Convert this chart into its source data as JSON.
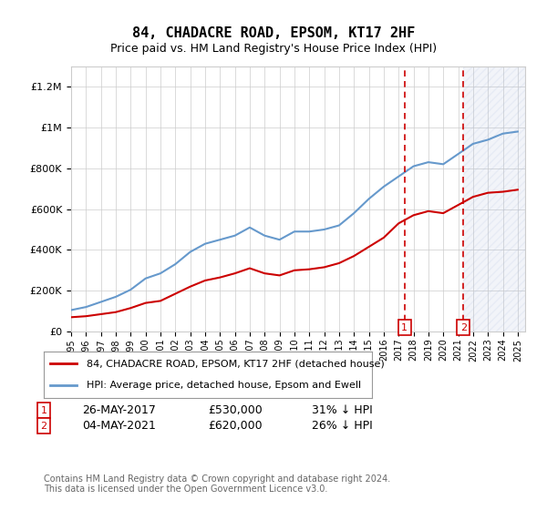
{
  "title": "84, CHADACRE ROAD, EPSOM, KT17 2HF",
  "subtitle": "Price paid vs. HM Land Registry's House Price Index (HPI)",
  "ylabel_ticks": [
    "£0",
    "£200K",
    "£400K",
    "£600K",
    "£800K",
    "£1M",
    "£1.2M"
  ],
  "ytick_values": [
    0,
    200000,
    400000,
    600000,
    800000,
    1000000,
    1200000
  ],
  "ylim": [
    0,
    1300000
  ],
  "xlim_start": 1995.0,
  "xlim_end": 2025.5,
  "sale1_year": 2017.4,
  "sale1_label": "1",
  "sale1_date": "26-MAY-2017",
  "sale1_price": "£530,000",
  "sale1_hpi": "31% ↓ HPI",
  "sale2_year": 2021.35,
  "sale2_label": "2",
  "sale2_date": "04-MAY-2021",
  "sale2_price": "£620,000",
  "sale2_hpi": "26% ↓ HPI",
  "hpi_color": "#6699cc",
  "price_color": "#cc0000",
  "dashed_color": "#cc0000",
  "legend1_label": "84, CHADACRE ROAD, EPSOM, KT17 2HF (detached house)",
  "legend2_label": "HPI: Average price, detached house, Epsom and Ewell",
  "copyright": "Contains HM Land Registry data © Crown copyright and database right 2024.\nThis data is licensed under the Open Government Licence v3.0.",
  "hpi_years": [
    1995,
    1996,
    1997,
    1998,
    1999,
    2000,
    2001,
    2002,
    2003,
    2004,
    2005,
    2006,
    2007,
    2008,
    2009,
    2010,
    2011,
    2012,
    2013,
    2014,
    2015,
    2016,
    2017,
    2018,
    2019,
    2020,
    2021,
    2022,
    2023,
    2024,
    2025
  ],
  "hpi_values": [
    105000,
    120000,
    145000,
    170000,
    205000,
    260000,
    285000,
    330000,
    390000,
    430000,
    450000,
    470000,
    510000,
    470000,
    450000,
    490000,
    490000,
    500000,
    520000,
    580000,
    650000,
    710000,
    760000,
    810000,
    830000,
    820000,
    870000,
    920000,
    940000,
    970000,
    980000
  ],
  "price_years": [
    1995,
    1996,
    1997,
    1998,
    1999,
    2000,
    2001,
    2002,
    2003,
    2004,
    2005,
    2006,
    2007,
    2008,
    2009,
    2010,
    2011,
    2012,
    2013,
    2014,
    2015,
    2016,
    2017,
    2018,
    2019,
    2020,
    2021,
    2022,
    2023,
    2024,
    2025
  ],
  "price_values": [
    70000,
    75000,
    85000,
    95000,
    115000,
    140000,
    150000,
    185000,
    220000,
    250000,
    265000,
    285000,
    310000,
    285000,
    275000,
    300000,
    305000,
    315000,
    335000,
    370000,
    415000,
    460000,
    530000,
    570000,
    590000,
    580000,
    620000,
    660000,
    680000,
    685000,
    695000
  ],
  "bg_color": "#ffffff",
  "grid_color": "#cccccc",
  "hatch_start": 2021.35,
  "hatch_end": 2025.5
}
